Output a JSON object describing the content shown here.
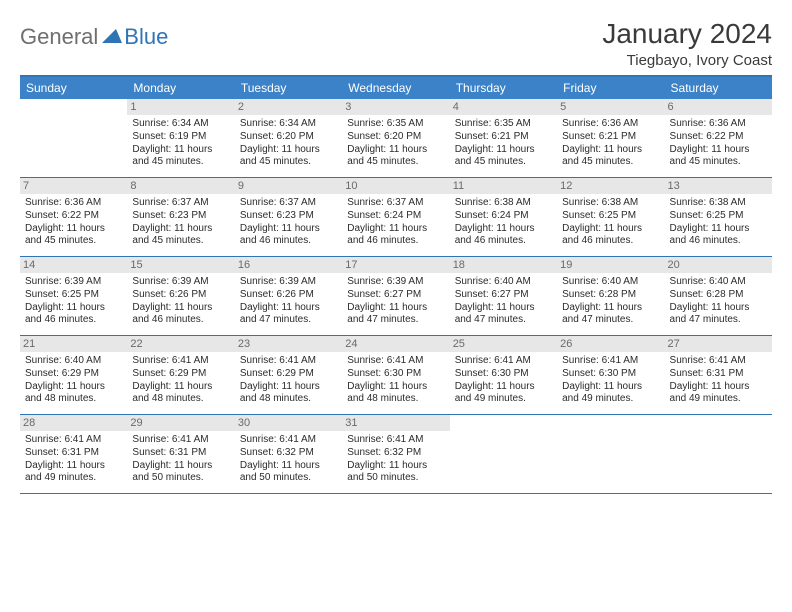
{
  "logo": {
    "word1": "General",
    "word2": "Blue"
  },
  "title": "January 2024",
  "location": "Tiegbayo, Ivory Coast",
  "colors": {
    "accent": "#2f74b5",
    "header_bg": "#3c82c8",
    "daynum_bg": "#e7e7e7",
    "text": "#2b2b2b",
    "logo_gray": "#6f6f6f"
  },
  "weekdays": [
    "Sunday",
    "Monday",
    "Tuesday",
    "Wednesday",
    "Thursday",
    "Friday",
    "Saturday"
  ],
  "weeks": [
    [
      {
        "n": "",
        "sr": "",
        "ss": "",
        "dl": ""
      },
      {
        "n": "1",
        "sr": "Sunrise: 6:34 AM",
        "ss": "Sunset: 6:19 PM",
        "dl": "Daylight: 11 hours and 45 minutes."
      },
      {
        "n": "2",
        "sr": "Sunrise: 6:34 AM",
        "ss": "Sunset: 6:20 PM",
        "dl": "Daylight: 11 hours and 45 minutes."
      },
      {
        "n": "3",
        "sr": "Sunrise: 6:35 AM",
        "ss": "Sunset: 6:20 PM",
        "dl": "Daylight: 11 hours and 45 minutes."
      },
      {
        "n": "4",
        "sr": "Sunrise: 6:35 AM",
        "ss": "Sunset: 6:21 PM",
        "dl": "Daylight: 11 hours and 45 minutes."
      },
      {
        "n": "5",
        "sr": "Sunrise: 6:36 AM",
        "ss": "Sunset: 6:21 PM",
        "dl": "Daylight: 11 hours and 45 minutes."
      },
      {
        "n": "6",
        "sr": "Sunrise: 6:36 AM",
        "ss": "Sunset: 6:22 PM",
        "dl": "Daylight: 11 hours and 45 minutes."
      }
    ],
    [
      {
        "n": "7",
        "sr": "Sunrise: 6:36 AM",
        "ss": "Sunset: 6:22 PM",
        "dl": "Daylight: 11 hours and 45 minutes."
      },
      {
        "n": "8",
        "sr": "Sunrise: 6:37 AM",
        "ss": "Sunset: 6:23 PM",
        "dl": "Daylight: 11 hours and 45 minutes."
      },
      {
        "n": "9",
        "sr": "Sunrise: 6:37 AM",
        "ss": "Sunset: 6:23 PM",
        "dl": "Daylight: 11 hours and 46 minutes."
      },
      {
        "n": "10",
        "sr": "Sunrise: 6:37 AM",
        "ss": "Sunset: 6:24 PM",
        "dl": "Daylight: 11 hours and 46 minutes."
      },
      {
        "n": "11",
        "sr": "Sunrise: 6:38 AM",
        "ss": "Sunset: 6:24 PM",
        "dl": "Daylight: 11 hours and 46 minutes."
      },
      {
        "n": "12",
        "sr": "Sunrise: 6:38 AM",
        "ss": "Sunset: 6:25 PM",
        "dl": "Daylight: 11 hours and 46 minutes."
      },
      {
        "n": "13",
        "sr": "Sunrise: 6:38 AM",
        "ss": "Sunset: 6:25 PM",
        "dl": "Daylight: 11 hours and 46 minutes."
      }
    ],
    [
      {
        "n": "14",
        "sr": "Sunrise: 6:39 AM",
        "ss": "Sunset: 6:25 PM",
        "dl": "Daylight: 11 hours and 46 minutes."
      },
      {
        "n": "15",
        "sr": "Sunrise: 6:39 AM",
        "ss": "Sunset: 6:26 PM",
        "dl": "Daylight: 11 hours and 46 minutes."
      },
      {
        "n": "16",
        "sr": "Sunrise: 6:39 AM",
        "ss": "Sunset: 6:26 PM",
        "dl": "Daylight: 11 hours and 47 minutes."
      },
      {
        "n": "17",
        "sr": "Sunrise: 6:39 AM",
        "ss": "Sunset: 6:27 PM",
        "dl": "Daylight: 11 hours and 47 minutes."
      },
      {
        "n": "18",
        "sr": "Sunrise: 6:40 AM",
        "ss": "Sunset: 6:27 PM",
        "dl": "Daylight: 11 hours and 47 minutes."
      },
      {
        "n": "19",
        "sr": "Sunrise: 6:40 AM",
        "ss": "Sunset: 6:28 PM",
        "dl": "Daylight: 11 hours and 47 minutes."
      },
      {
        "n": "20",
        "sr": "Sunrise: 6:40 AM",
        "ss": "Sunset: 6:28 PM",
        "dl": "Daylight: 11 hours and 47 minutes."
      }
    ],
    [
      {
        "n": "21",
        "sr": "Sunrise: 6:40 AM",
        "ss": "Sunset: 6:29 PM",
        "dl": "Daylight: 11 hours and 48 minutes."
      },
      {
        "n": "22",
        "sr": "Sunrise: 6:41 AM",
        "ss": "Sunset: 6:29 PM",
        "dl": "Daylight: 11 hours and 48 minutes."
      },
      {
        "n": "23",
        "sr": "Sunrise: 6:41 AM",
        "ss": "Sunset: 6:29 PM",
        "dl": "Daylight: 11 hours and 48 minutes."
      },
      {
        "n": "24",
        "sr": "Sunrise: 6:41 AM",
        "ss": "Sunset: 6:30 PM",
        "dl": "Daylight: 11 hours and 48 minutes."
      },
      {
        "n": "25",
        "sr": "Sunrise: 6:41 AM",
        "ss": "Sunset: 6:30 PM",
        "dl": "Daylight: 11 hours and 49 minutes."
      },
      {
        "n": "26",
        "sr": "Sunrise: 6:41 AM",
        "ss": "Sunset: 6:30 PM",
        "dl": "Daylight: 11 hours and 49 minutes."
      },
      {
        "n": "27",
        "sr": "Sunrise: 6:41 AM",
        "ss": "Sunset: 6:31 PM",
        "dl": "Daylight: 11 hours and 49 minutes."
      }
    ],
    [
      {
        "n": "28",
        "sr": "Sunrise: 6:41 AM",
        "ss": "Sunset: 6:31 PM",
        "dl": "Daylight: 11 hours and 49 minutes."
      },
      {
        "n": "29",
        "sr": "Sunrise: 6:41 AM",
        "ss": "Sunset: 6:31 PM",
        "dl": "Daylight: 11 hours and 50 minutes."
      },
      {
        "n": "30",
        "sr": "Sunrise: 6:41 AM",
        "ss": "Sunset: 6:32 PM",
        "dl": "Daylight: 11 hours and 50 minutes."
      },
      {
        "n": "31",
        "sr": "Sunrise: 6:41 AM",
        "ss": "Sunset: 6:32 PM",
        "dl": "Daylight: 11 hours and 50 minutes."
      },
      {
        "n": "",
        "sr": "",
        "ss": "",
        "dl": ""
      },
      {
        "n": "",
        "sr": "",
        "ss": "",
        "dl": ""
      },
      {
        "n": "",
        "sr": "",
        "ss": "",
        "dl": ""
      }
    ]
  ]
}
